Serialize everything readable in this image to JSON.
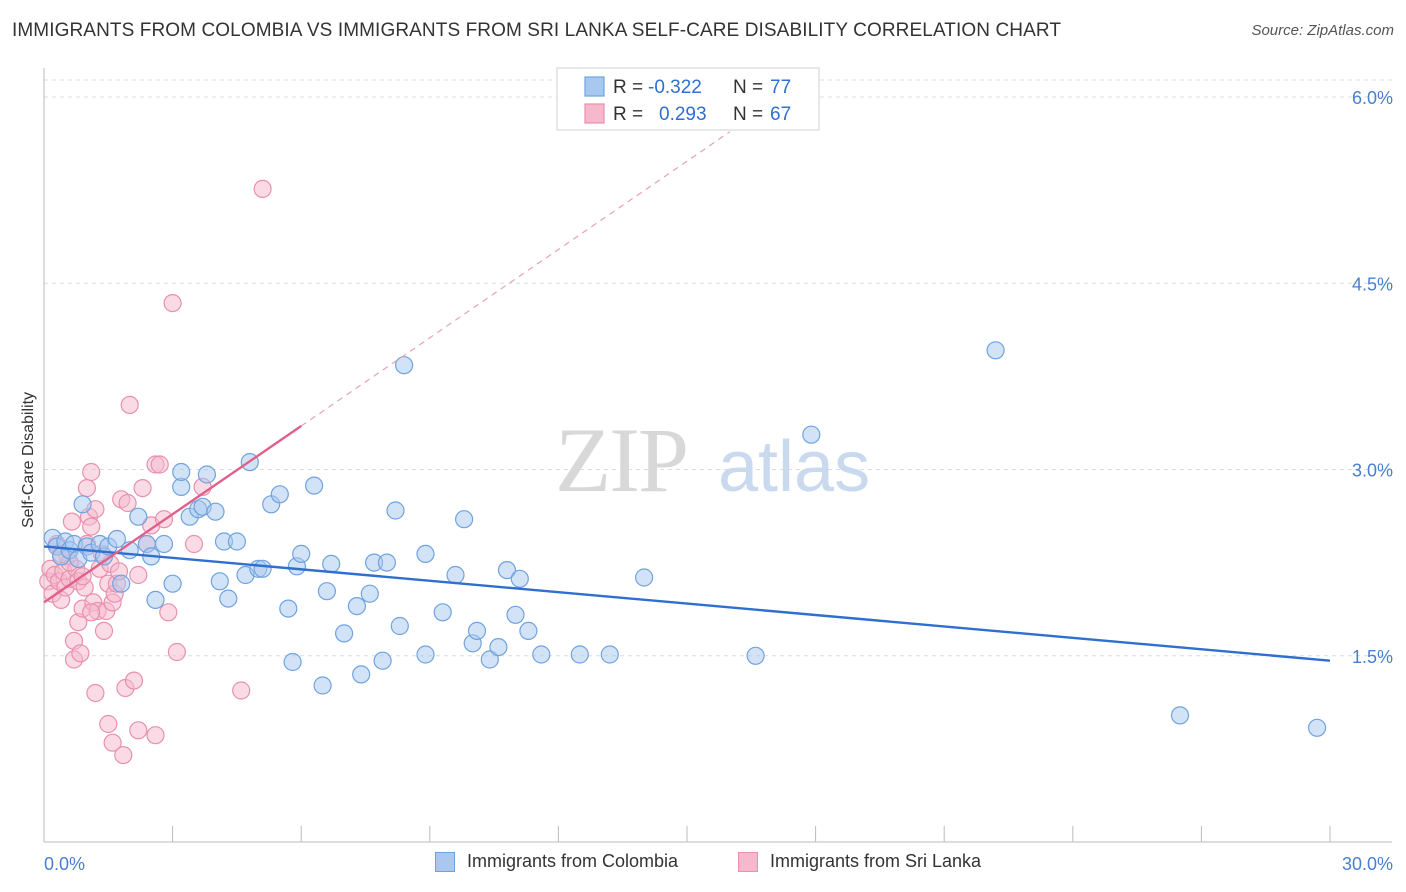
{
  "header": {
    "title": "IMMIGRANTS FROM COLOMBIA VS IMMIGRANTS FROM SRI LANKA SELF-CARE DISABILITY CORRELATION CHART",
    "source": "Source: ZipAtlas.com"
  },
  "watermark": {
    "part1": "ZIP",
    "part2": "atlas"
  },
  "colors": {
    "blue_fill": "#a8c8f0",
    "blue_stroke": "#6fa3df",
    "blue_line": "#2e6fcf",
    "pink_fill": "#f5b8cc",
    "pink_stroke": "#e890ae",
    "pink_line": "#e0608a",
    "tick_label": "#4a7fcf"
  },
  "legend": {
    "row1": {
      "r_label": "R =",
      "r_value": "-0.322",
      "n_label": "N =",
      "n_value": "77"
    },
    "row2": {
      "r_label": "R =",
      "r_value": "0.293",
      "n_label": "N =",
      "n_value": "67"
    }
  },
  "chart_data": {
    "type": "scatter",
    "title": "IMMIGRANTS FROM COLOMBIA VS IMMIGRANTS FROM SRI LANKA SELF-CARE DISABILITY CORRELATION CHART",
    "xlabel": "",
    "ylabel": "Self-Care Disability",
    "xlim": [
      0,
      30
    ],
    "ylim": [
      0,
      6.2
    ],
    "x_ticks": [
      0,
      3,
      6,
      9,
      12,
      15,
      18,
      21,
      24,
      27,
      30
    ],
    "x_tick_labels": {
      "0": "0.0%",
      "30": "30.0%"
    },
    "y_ticks": [
      1.5,
      3.0,
      4.5,
      6.0
    ],
    "y_tick_labels": [
      "1.5%",
      "3.0%",
      "4.5%",
      "6.0%"
    ],
    "grid": true,
    "legend_position": "top-center",
    "series": [
      {
        "name": "Immigrants from Colombia",
        "color": "blue",
        "points": [
          [
            0.2,
            2.45
          ],
          [
            0.3,
            2.38
          ],
          [
            0.4,
            2.3
          ],
          [
            0.5,
            2.42
          ],
          [
            0.6,
            2.35
          ],
          [
            0.7,
            2.4
          ],
          [
            0.8,
            2.28
          ],
          [
            0.9,
            2.72
          ],
          [
            1.0,
            2.38
          ],
          [
            1.1,
            2.33
          ],
          [
            1.3,
            2.4
          ],
          [
            1.4,
            2.3
          ],
          [
            1.5,
            2.38
          ],
          [
            1.7,
            2.44
          ],
          [
            1.8,
            2.08
          ],
          [
            2.0,
            2.35
          ],
          [
            2.2,
            2.62
          ],
          [
            2.4,
            2.4
          ],
          [
            2.5,
            2.3
          ],
          [
            2.6,
            1.95
          ],
          [
            2.8,
            2.4
          ],
          [
            3.0,
            2.08
          ],
          [
            3.2,
            2.86
          ],
          [
            3.2,
            2.98
          ],
          [
            3.4,
            2.62
          ],
          [
            3.6,
            2.68
          ],
          [
            3.7,
            2.7
          ],
          [
            3.8,
            2.96
          ],
          [
            4.0,
            2.66
          ],
          [
            4.1,
            2.1
          ],
          [
            4.2,
            2.42
          ],
          [
            4.3,
            1.96
          ],
          [
            4.5,
            2.42
          ],
          [
            4.7,
            2.15
          ],
          [
            4.8,
            3.06
          ],
          [
            5.0,
            2.2
          ],
          [
            5.1,
            2.2
          ],
          [
            5.3,
            2.72
          ],
          [
            5.5,
            2.8
          ],
          [
            5.7,
            1.88
          ],
          [
            5.8,
            1.45
          ],
          [
            5.9,
            2.22
          ],
          [
            6.0,
            2.32
          ],
          [
            6.3,
            2.87
          ],
          [
            6.5,
            1.26
          ],
          [
            6.6,
            2.02
          ],
          [
            6.7,
            2.24
          ],
          [
            7.0,
            1.68
          ],
          [
            7.3,
            1.9
          ],
          [
            7.4,
            1.35
          ],
          [
            7.6,
            2.0
          ],
          [
            7.7,
            2.25
          ],
          [
            7.9,
            1.46
          ],
          [
            8.0,
            2.25
          ],
          [
            8.2,
            2.67
          ],
          [
            8.3,
            1.74
          ],
          [
            8.4,
            3.84
          ],
          [
            8.9,
            2.32
          ],
          [
            8.9,
            1.51
          ],
          [
            9.3,
            1.85
          ],
          [
            9.6,
            2.15
          ],
          [
            9.8,
            2.6
          ],
          [
            10.0,
            1.6
          ],
          [
            10.1,
            1.7
          ],
          [
            10.4,
            1.47
          ],
          [
            10.6,
            1.57
          ],
          [
            10.8,
            2.19
          ],
          [
            11.0,
            1.83
          ],
          [
            11.1,
            2.12
          ],
          [
            11.3,
            1.7
          ],
          [
            11.6,
            1.51
          ],
          [
            12.5,
            1.51
          ],
          [
            13.2,
            1.51
          ],
          [
            14.0,
            2.13
          ],
          [
            16.6,
            1.5
          ],
          [
            17.9,
            3.28
          ],
          [
            22.2,
            3.96
          ],
          [
            26.5,
            1.02
          ],
          [
            29.7,
            0.92
          ]
        ],
        "trendline": {
          "x": [
            0,
            30
          ],
          "y": [
            2.38,
            1.46
          ]
        }
      },
      {
        "name": "Immigrants from Sri Lanka",
        "color": "pink",
        "points": [
          [
            0.1,
            2.1
          ],
          [
            0.15,
            2.2
          ],
          [
            0.2,
            2.0
          ],
          [
            0.25,
            2.15
          ],
          [
            0.3,
            2.4
          ],
          [
            0.35,
            2.1
          ],
          [
            0.4,
            1.95
          ],
          [
            0.45,
            2.18
          ],
          [
            0.5,
            2.05
          ],
          [
            0.55,
            2.3
          ],
          [
            0.6,
            2.12
          ],
          [
            0.65,
            2.58
          ],
          [
            0.7,
            1.62
          ],
          [
            0.7,
            1.47
          ],
          [
            0.75,
            2.2
          ],
          [
            0.8,
            1.77
          ],
          [
            0.8,
            2.1
          ],
          [
            0.85,
            1.52
          ],
          [
            0.9,
            1.88
          ],
          [
            0.95,
            2.05
          ],
          [
            1.0,
            2.85
          ],
          [
            1.0,
            2.4
          ],
          [
            1.05,
            2.62
          ],
          [
            1.1,
            2.98
          ],
          [
            1.1,
            2.54
          ],
          [
            1.15,
            1.93
          ],
          [
            1.2,
            2.68
          ],
          [
            1.25,
            1.86
          ],
          [
            1.3,
            2.2
          ],
          [
            1.35,
            2.32
          ],
          [
            1.4,
            1.7
          ],
          [
            1.45,
            1.86
          ],
          [
            1.5,
            2.08
          ],
          [
            1.55,
            2.24
          ],
          [
            1.6,
            1.93
          ],
          [
            1.6,
            0.8
          ],
          [
            1.65,
            2.0
          ],
          [
            1.7,
            2.08
          ],
          [
            1.75,
            2.18
          ],
          [
            1.8,
            2.76
          ],
          [
            1.85,
            0.7
          ],
          [
            1.9,
            1.24
          ],
          [
            1.95,
            2.73
          ],
          [
            2.0,
            3.52
          ],
          [
            2.1,
            1.3
          ],
          [
            2.2,
            0.9
          ],
          [
            2.3,
            2.85
          ],
          [
            2.4,
            2.4
          ],
          [
            2.5,
            2.55
          ],
          [
            2.6,
            0.86
          ],
          [
            2.6,
            3.04
          ],
          [
            2.7,
            3.04
          ],
          [
            2.8,
            2.6
          ],
          [
            2.9,
            1.85
          ],
          [
            3.0,
            4.34
          ],
          [
            3.1,
            1.53
          ],
          [
            3.5,
            2.4
          ],
          [
            3.7,
            2.86
          ],
          [
            4.6,
            1.22
          ],
          [
            5.1,
            5.26
          ],
          [
            1.5,
            0.95
          ],
          [
            0.9,
            2.14
          ],
          [
            1.2,
            1.2
          ],
          [
            1.1,
            1.85
          ],
          [
            0.6,
            2.25
          ],
          [
            2.2,
            2.15
          ],
          [
            0.4,
            2.32
          ]
        ],
        "trendline": {
          "x": [
            0,
            6.0
          ],
          "y": [
            1.93,
            3.35
          ]
        },
        "trendline_extended": {
          "x": [
            6.0,
            16.0
          ],
          "y": [
            3.35,
            5.72
          ]
        }
      }
    ]
  },
  "bottom_legend": {
    "series1": "Immigrants from Colombia",
    "series2": "Immigrants from Sri Lanka"
  }
}
